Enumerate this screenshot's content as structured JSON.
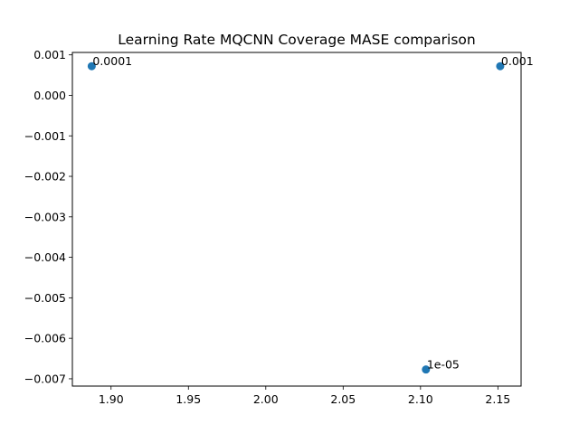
{
  "chart_data": {
    "type": "scatter",
    "title": "Learning Rate MQCNN Coverage MASE comparison",
    "xlabel": "",
    "ylabel": "",
    "xlim": [
      1.875,
      2.165
    ],
    "ylim": [
      -0.00718,
      0.00106
    ],
    "x_ticks": [
      1.9,
      1.95,
      2.0,
      2.05,
      2.1,
      2.15
    ],
    "x_tick_labels": [
      "1.90",
      "1.95",
      "2.00",
      "2.05",
      "2.10",
      "2.15"
    ],
    "y_ticks": [
      0.001,
      0.0,
      -0.001,
      -0.002,
      -0.003,
      -0.004,
      -0.005,
      -0.006,
      -0.007
    ],
    "y_tick_labels": [
      "0.001",
      "0.000",
      "−0.001",
      "−0.002",
      "−0.003",
      "−0.004",
      "−0.005",
      "−0.006",
      "−0.007"
    ],
    "grid": false,
    "marker_color": "#1f77b4",
    "points": [
      {
        "x": 1.8875,
        "y": 0.00072,
        "label": "0.0001"
      },
      {
        "x": 2.1515,
        "y": 0.00072,
        "label": "0.001"
      },
      {
        "x": 2.1035,
        "y": -0.00677,
        "label": "1e-05"
      }
    ]
  }
}
